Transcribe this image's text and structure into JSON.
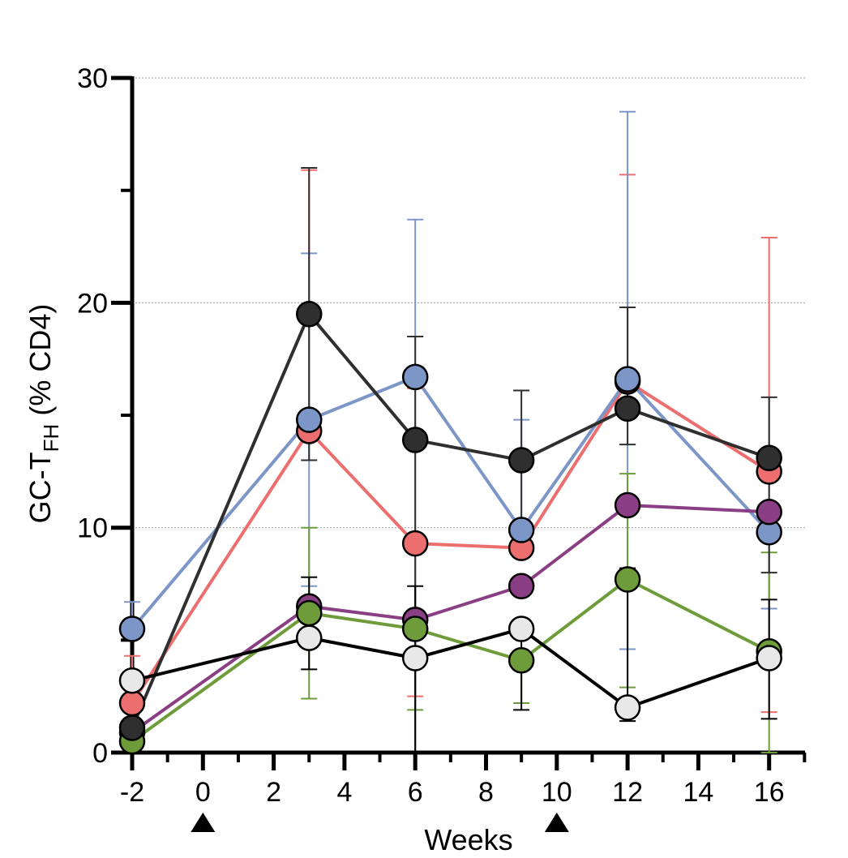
{
  "chart_data": {
    "type": "line",
    "xlabel": "Weeks",
    "ylabel": "GC-T",
    "ylabel_sub": "FH",
    "ylabel_suffix": " (% CD4)",
    "xlim": [
      -2,
      17
    ],
    "ylim": [
      0,
      30
    ],
    "x_ticks": [
      "-2",
      "0",
      "2",
      "4",
      "6",
      "8",
      "10",
      "12",
      "14",
      "16"
    ],
    "y_ticks": [
      "0",
      "10",
      "20",
      "30"
    ],
    "y_gridlines": [
      10,
      20,
      30
    ],
    "dose_markers": [
      0,
      10
    ],
    "x": [
      -2,
      3,
      6,
      9,
      12,
      16
    ],
    "series": [
      {
        "name": "pink",
        "color": "#ec6e6e",
        "values": [
          2.2,
          14.3,
          9.3,
          9.1,
          16.5,
          12.5
        ],
        "err_upper": [
          4.3,
          25.9,
          16.2,
          9.0,
          25.7,
          22.9
        ],
        "err_lower": [
          2.2,
          14.3,
          2.5,
          9.0,
          16.5,
          1.8
        ]
      },
      {
        "name": "blue",
        "color": "#7d96c8",
        "values": [
          5.5,
          14.8,
          16.7,
          9.9,
          16.6,
          9.8
        ],
        "err_upper": [
          6.7,
          22.2,
          23.7,
          14.8,
          28.5,
          9.8
        ],
        "err_lower": [
          5.5,
          7.4,
          16.7,
          9.9,
          4.6,
          6.4
        ]
      },
      {
        "name": "purple",
        "color": "#8a3f84",
        "values": [
          0.9,
          6.5,
          5.9,
          7.4,
          11.0,
          10.7
        ],
        "err_upper": [
          0.9,
          6.5,
          5.9,
          7.4,
          11.0,
          10.7
        ],
        "err_lower": [
          0.9,
          6.5,
          5.9,
          7.4,
          11.0,
          10.7
        ]
      },
      {
        "name": "green",
        "color": "#6f9c3a",
        "values": [
          0.5,
          6.2,
          5.5,
          4.1,
          7.7,
          4.5
        ],
        "err_upper": [
          0.5,
          10.0,
          8.9,
          4.1,
          12.4,
          8.9
        ],
        "err_lower": [
          0.5,
          2.4,
          1.9,
          2.2,
          2.9,
          0
        ]
      },
      {
        "name": "dark-gray",
        "color": "#2f2f2f",
        "values": [
          1.1,
          19.5,
          13.9,
          13.0,
          15.3,
          13.1
        ],
        "err_upper": [
          1.1,
          26.0,
          18.5,
          16.1,
          19.8,
          15.8
        ],
        "err_lower": [
          1.1,
          13.0,
          0,
          9.0,
          13.7,
          8.0
        ]
      },
      {
        "name": "light-gray",
        "color": "#000000",
        "fill": "#e8e8e8",
        "values": [
          3.2,
          5.1,
          4.2,
          5.5,
          2.0,
          4.2
        ],
        "err_upper": [
          3.2,
          7.8,
          7.4,
          5.5,
          8.2,
          6.8
        ],
        "err_lower": [
          3.2,
          3.7,
          0,
          1.9,
          1.4,
          1.5
        ]
      }
    ]
  }
}
